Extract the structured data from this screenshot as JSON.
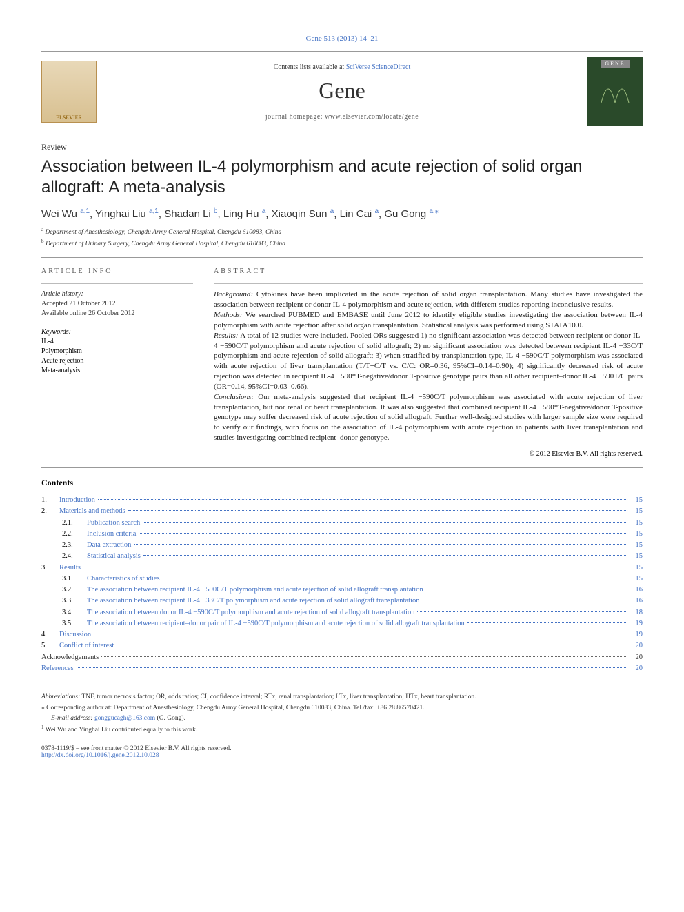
{
  "citation": "Gene 513 (2013) 14–21",
  "band": {
    "contents_prefix": "Contents lists available at ",
    "contents_link": "SciVerse ScienceDirect",
    "journal": "Gene",
    "homepage_label": "journal homepage: ",
    "homepage_url": "www.elsevier.com/locate/gene",
    "left_logo_text": "ELSEVIER",
    "right_cover_text": "GENE"
  },
  "review_label": "Review",
  "title": "Association between IL-4 polymorphism and acute rejection of solid organ allograft: A meta-analysis",
  "authors_raw": [
    {
      "name": "Wei Wu ",
      "aff": "a,1"
    },
    {
      "name": ", Yinghai Liu ",
      "aff": "a,1"
    },
    {
      "name": ", Shadan Li ",
      "aff": "b"
    },
    {
      "name": ", Ling Hu ",
      "aff": "a"
    },
    {
      "name": ", Xiaoqin Sun ",
      "aff": "a"
    },
    {
      "name": ", Lin Cai ",
      "aff": "a"
    },
    {
      "name": ", Gu Gong ",
      "aff": "a,",
      "star": "⁎"
    }
  ],
  "affiliations": [
    {
      "sup": "a",
      "text": " Department of Anesthesiology, Chengdu Army General Hospital, Chengdu 610083, China"
    },
    {
      "sup": "b",
      "text": " Department of Urinary Surgery, Chengdu Army General Hospital, Chengdu 610083, China"
    }
  ],
  "article_info": {
    "heading": "article info",
    "history_label": "Article history:",
    "accepted": "Accepted 21 October 2012",
    "online": "Available online 26 October 2012",
    "keywords_label": "Keywords:",
    "keywords": [
      "IL-4",
      "Polymorphism",
      "Acute rejection",
      "Meta-analysis"
    ]
  },
  "abstract": {
    "heading": "abstract",
    "sections": [
      {
        "label": "Background: ",
        "text": "Cytokines have been implicated in the acute rejection of solid organ transplantation. Many studies have investigated the association between recipient or donor IL-4 polymorphism and acute rejection, with different studies reporting inconclusive results."
      },
      {
        "label": "Methods: ",
        "text": "We searched PUBMED and EMBASE until June 2012 to identify eligible studies investigating the association between IL-4 polymorphism with acute rejection after solid organ transplantation. Statistical analysis was performed using STATA10.0."
      },
      {
        "label": "Results: ",
        "text": "A total of 12 studies were included. Pooled ORs suggested 1) no significant association was detected between recipient or donor IL-4 −590C/T polymorphism and acute rejection of solid allograft; 2) no significant association was detected between recipient IL-4 −33C/T polymorphism and acute rejection of solid allograft; 3) when stratified by transplantation type, IL-4 −590C/T polymorphism was associated with acute rejection of liver transplantation (T/T+C/T vs. C/C: OR=0.36, 95%CI=0.14–0.90); 4) significantly decreased risk of acute rejection was detected in recipient IL-4 −590*T-negative/donor T-positive genotype pairs than all other recipient–donor IL-4 −590T/C pairs (OR=0.14, 95%CI=0.03–0.66)."
      },
      {
        "label": "Conclusions: ",
        "text": "Our meta-analysis suggested that recipient IL-4 −590C/T polymorphism was associated with acute rejection of liver transplantation, but nor renal or heart transplantation. It was also suggested that combined recipient IL-4 −590*T-negative/donor T-positive genotype may suffer decreased risk of acute rejection of solid allograft. Further well-designed studies with larger sample size were required to verify our findings, with focus on the association of IL-4 polymorphism with acute rejection in patients with liver transplantation and studies investigating combined recipient–donor genotype."
      }
    ],
    "copyright": "© 2012 Elsevier B.V. All rights reserved."
  },
  "contents_heading": "Contents",
  "toc": [
    {
      "num": "1.",
      "text": "Introduction",
      "page": "15",
      "lvl": 0,
      "link": true
    },
    {
      "num": "2.",
      "text": "Materials and methods",
      "page": "15",
      "lvl": 0,
      "link": true
    },
    {
      "num": "2.1.",
      "text": "Publication search",
      "page": "15",
      "lvl": 1,
      "link": true
    },
    {
      "num": "2.2.",
      "text": "Inclusion criteria",
      "page": "15",
      "lvl": 1,
      "link": true
    },
    {
      "num": "2.3.",
      "text": "Data extraction",
      "page": "15",
      "lvl": 1,
      "link": true
    },
    {
      "num": "2.4.",
      "text": "Statistical analysis",
      "page": "15",
      "lvl": 1,
      "link": true
    },
    {
      "num": "3.",
      "text": "Results",
      "page": "15",
      "lvl": 0,
      "link": true
    },
    {
      "num": "3.1.",
      "text": "Characteristics of studies",
      "page": "15",
      "lvl": 1,
      "link": true
    },
    {
      "num": "3.2.",
      "text": "The association between recipient IL-4 −590C/T polymorphism and acute rejection of solid allograft transplantation",
      "page": "16",
      "lvl": 1,
      "link": true
    },
    {
      "num": "3.3.",
      "text": "The association between recipient IL-4 −33C/T polymorphism and acute rejection of solid allograft transplantation",
      "page": "16",
      "lvl": 1,
      "link": true
    },
    {
      "num": "3.4.",
      "text": "The association between donor IL-4 −590C/T polymorphism and acute rejection of solid allograft transplantation",
      "page": "18",
      "lvl": 1,
      "link": true
    },
    {
      "num": "3.5.",
      "text": "The association between recipient–donor pair of IL-4 −590C/T polymorphism and acute rejection of solid allograft transplantation",
      "page": "19",
      "lvl": 1,
      "link": true
    },
    {
      "num": "4.",
      "text": "Discussion",
      "page": "19",
      "lvl": 0,
      "link": true
    },
    {
      "num": "5.",
      "text": "Conflict of interest",
      "page": "20",
      "lvl": 0,
      "link": true
    },
    {
      "num": "",
      "text": "Acknowledgements",
      "page": "20",
      "lvl": 0,
      "link": false
    },
    {
      "num": "",
      "text": "References",
      "page": "20",
      "lvl": 0,
      "link": true
    }
  ],
  "footnotes": {
    "abbrev_label": "Abbreviations: ",
    "abbrev_text": "TNF, tumor necrosis factor; OR, odds ratios; CI, confidence interval; RTx, renal transplantation; LTx, liver transplantation; HTx, heart transplantation.",
    "corr_marker": "⁎",
    "corr_text": " Corresponding author at: Department of Anesthesiology, Chengdu Army General Hospital, Chengdu 610083, China. Tel./fax: +86 28 86570421.",
    "email_label": "E-mail address: ",
    "email": "gonggucagh@163.com",
    "email_suffix": " (G. Gong).",
    "note1_marker": "1",
    "note1_text": " Wei Wu and Yinghai Liu contributed equally to this work."
  },
  "bottom": {
    "front_matter": "0378-1119/$ – see front matter © 2012 Elsevier B.V. All rights reserved.",
    "doi": "http://dx.doi.org/10.1016/j.gene.2012.10.028"
  },
  "colors": {
    "link": "#4472c4",
    "text": "#000000",
    "rule": "#999999"
  }
}
